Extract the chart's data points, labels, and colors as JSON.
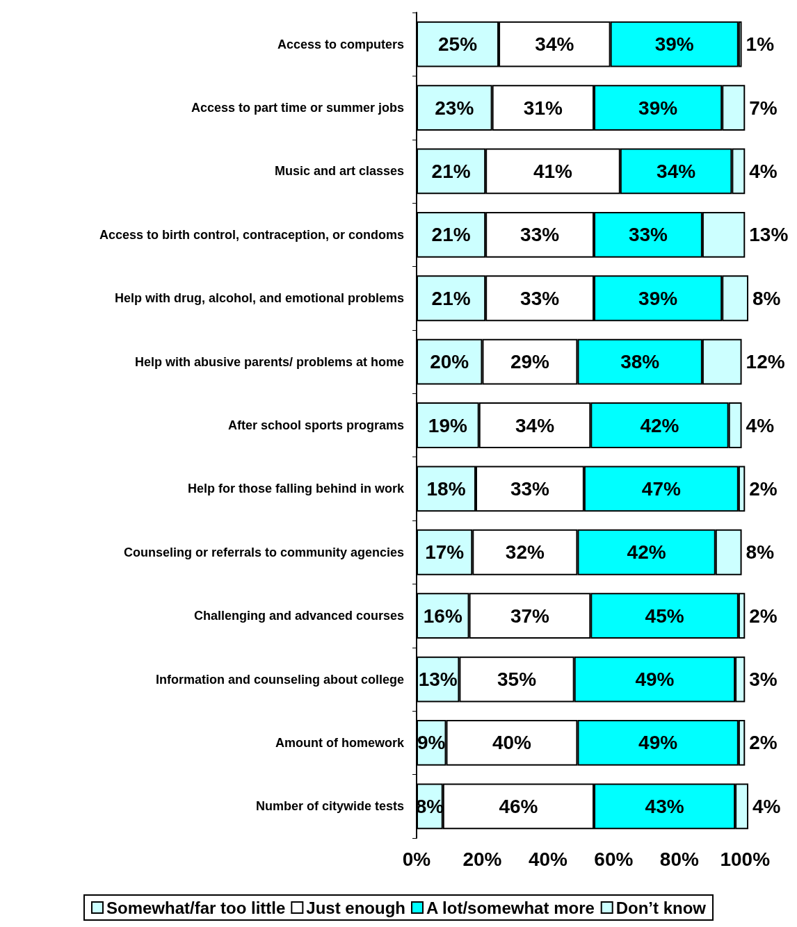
{
  "chart_data": {
    "type": "bar",
    "orientation": "horizontal",
    "stacked": true,
    "legend": "bottom",
    "categories": [
      "Access to computers",
      "Access to part time or summer jobs",
      "Music and art classes",
      "Access to birth control, contraception, or condoms",
      "Help with drug, alcohol, and emotional problems",
      "Help with abusive parents/ problems at home",
      "After school sports programs",
      "Help for those falling behind in work",
      "Counseling or referrals to community agencies",
      "Challenging and advanced courses",
      "Information and counseling about college",
      "Amount of homework",
      "Number of citywide tests"
    ],
    "xlim": [
      0,
      101
    ],
    "xticks": [
      {
        "value": 0,
        "label": "0%"
      },
      {
        "value": 20,
        "label": "20%"
      },
      {
        "value": 40,
        "label": "40%"
      },
      {
        "value": 60,
        "label": "60%"
      },
      {
        "value": 80,
        "label": "80%"
      },
      {
        "value": 100,
        "label": "100%"
      }
    ],
    "series": [
      {
        "name": "Somewhat/far too little",
        "color": "#ccffff",
        "values": [
          25,
          23,
          21,
          21,
          21,
          20,
          19,
          18,
          17,
          16,
          13,
          9,
          8
        ],
        "value_labels": [
          "25%",
          "23%",
          "21%",
          "21%",
          "21%",
          "20%",
          "19%",
          "18%",
          "17%",
          "16%",
          "13%",
          "9%",
          "8%"
        ]
      },
      {
        "name": "Just enough",
        "color": "#ffffff",
        "values": [
          34,
          31,
          41,
          33,
          33,
          29,
          34,
          33,
          32,
          37,
          35,
          40,
          46
        ],
        "value_labels": [
          "34%",
          "31%",
          "41%",
          "33%",
          "33%",
          "29%",
          "34%",
          "33%",
          "32%",
          "37%",
          "35%",
          "40%",
          "46%"
        ]
      },
      {
        "name": "A lot/somewhat more",
        "color": "#00ffff",
        "values": [
          39,
          39,
          34,
          33,
          39,
          38,
          42,
          47,
          42,
          45,
          49,
          49,
          43
        ],
        "value_labels": [
          "39%",
          "39%",
          "34%",
          "33%",
          "39%",
          "38%",
          "42%",
          "47%",
          "42%",
          "45%",
          "49%",
          "49%",
          "43%"
        ]
      },
      {
        "name": "Don’t know",
        "color": "#ccffff",
        "values": [
          1,
          7,
          4,
          13,
          8,
          12,
          4,
          2,
          8,
          2,
          3,
          2,
          4
        ],
        "value_labels": [
          "1%",
          "7%",
          "4%",
          "13%",
          "8%",
          "12%",
          "4%",
          "2%",
          "8%",
          "2%",
          "3%",
          "2%",
          "4%"
        ]
      }
    ]
  }
}
